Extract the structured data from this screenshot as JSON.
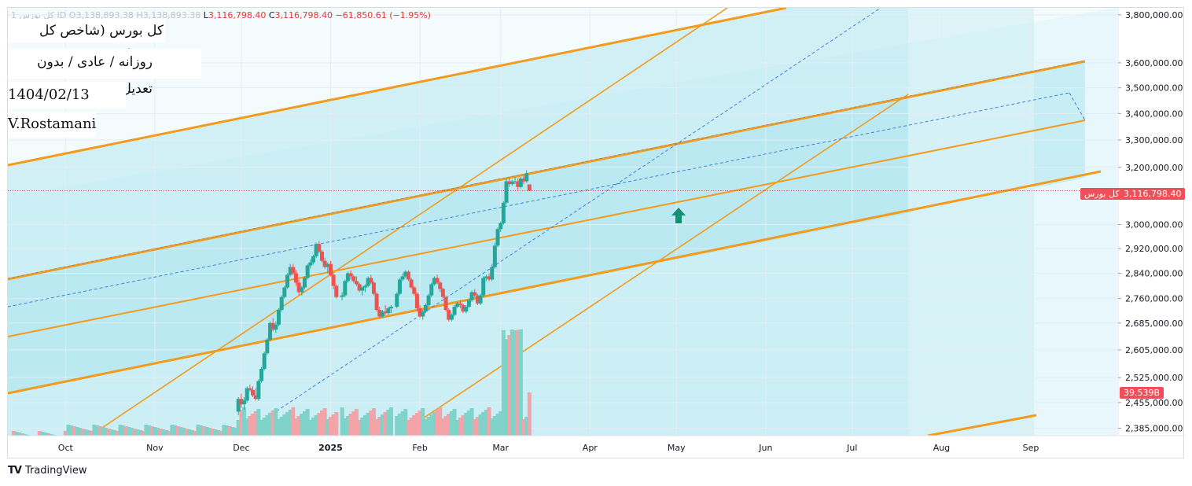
{
  "header": {
    "symbol_partial": "1 کل بورس ID",
    "o_label": "O",
    "o_value": "3,138,893.38",
    "h_label": "H",
    "h_value": "3,138,893.38",
    "l_label": "L",
    "l_value": "3,116,798.40",
    "c_label": "C",
    "c_value": "3,116,798.40",
    "change": "−61,850.61 (−1.95%)"
  },
  "title_lines": {
    "index_name": "کل بورس (شاخص کل بورس)",
    "settings": "روزانه / عادی / بدون تعدیل",
    "timestamp": "1404/02/13 17:36",
    "author": "V.Rostamani"
  },
  "price_tag": {
    "symbol": "کل بورس",
    "value": "3,116,798.40"
  },
  "volume_tag": {
    "value": "39.539B"
  },
  "brand": {
    "name": "TradingView",
    "logo_text": "TV"
  },
  "colors": {
    "up": "#26a69a",
    "down": "#ef5350",
    "trendline": "#f29b1d",
    "dashed": "#3f7fe0",
    "fill": "#cfeff5",
    "fill_dark": "#a9e6ee"
  },
  "chart_data": {
    "type": "candlestick",
    "title": "کل بورس (شاخص کل بورس)",
    "y_ticks": [
      "3,800,000.00",
      "3,600,000.00",
      "3,500,000.00",
      "3,400,000.00",
      "3,300,000.00",
      "3,200,000.00",
      "3,000,000.00",
      "2,920,000.00",
      "2,840,000.00",
      "2,760,000.00",
      "2,685,000.00",
      "2,605,000.00",
      "2,525,000.00",
      "2,455,000.00",
      "2,385,000.00"
    ],
    "y_tick_values": [
      3800000,
      3600000,
      3500000,
      3400000,
      3300000,
      3200000,
      3000000,
      2920000,
      2840000,
      2760000,
      2685000,
      2605000,
      2525000,
      2455000,
      2385000
    ],
    "y_scale": "log",
    "ylim": [
      2365000,
      3830000
    ],
    "x_ticks": [
      "Oct",
      "Nov",
      "Dec",
      "2025",
      "Feb",
      "Mar",
      "Apr",
      "May",
      "Jun",
      "Jul",
      "Aug",
      "Sep"
    ],
    "x_tick_days": [
      0,
      31,
      61,
      92,
      123,
      151,
      182,
      212,
      243,
      273,
      304,
      335
    ],
    "x_start": "2024-10-01",
    "xlim_days": [
      -20,
      365
    ],
    "last_price": 3116798.4,
    "volume_last": "39.539B",
    "candles": [
      [
        60,
        2430000,
        2470000,
        2420000,
        2465000
      ],
      [
        61,
        2465000,
        2480000,
        2440000,
        2450000
      ],
      [
        62,
        2450000,
        2470000,
        2435000,
        2460000
      ],
      [
        63,
        2460000,
        2500000,
        2455000,
        2495000
      ],
      [
        64,
        2495000,
        2505000,
        2485000,
        2490000
      ],
      [
        65,
        2490000,
        2500000,
        2470000,
        2475000
      ],
      [
        66,
        2475000,
        2495000,
        2460000,
        2465000
      ],
      [
        67,
        2465000,
        2520000,
        2460000,
        2515000
      ],
      [
        68,
        2515000,
        2555000,
        2510000,
        2550000
      ],
      [
        69,
        2550000,
        2600000,
        2545000,
        2595000
      ],
      [
        70,
        2595000,
        2640000,
        2590000,
        2635000
      ],
      [
        71,
        2635000,
        2690000,
        2630000,
        2685000
      ],
      [
        72,
        2685000,
        2700000,
        2660000,
        2665000
      ],
      [
        73,
        2665000,
        2690000,
        2655000,
        2680000
      ],
      [
        74,
        2680000,
        2730000,
        2675000,
        2725000
      ],
      [
        75,
        2725000,
        2770000,
        2720000,
        2765000
      ],
      [
        76,
        2765000,
        2800000,
        2760000,
        2795000
      ],
      [
        77,
        2795000,
        2840000,
        2790000,
        2835000
      ],
      [
        78,
        2835000,
        2870000,
        2830000,
        2860000
      ],
      [
        79,
        2860000,
        2870000,
        2835000,
        2840000
      ],
      [
        80,
        2840000,
        2850000,
        2800000,
        2810000
      ],
      [
        81,
        2810000,
        2820000,
        2770000,
        2780000
      ],
      [
        82,
        2780000,
        2800000,
        2770000,
        2795000
      ],
      [
        83,
        2795000,
        2830000,
        2790000,
        2825000
      ],
      [
        84,
        2825000,
        2870000,
        2820000,
        2865000
      ],
      [
        85,
        2865000,
        2885000,
        2855000,
        2875000
      ],
      [
        86,
        2875000,
        2900000,
        2868000,
        2895000
      ],
      [
        87,
        2895000,
        2940000,
        2890000,
        2935000
      ],
      [
        88,
        2935000,
        2945000,
        2905000,
        2910000
      ],
      [
        89,
        2910000,
        2915000,
        2875000,
        2880000
      ],
      [
        90,
        2880000,
        2890000,
        2855000,
        2860000
      ],
      [
        91,
        2860000,
        2875000,
        2840000,
        2870000
      ],
      [
        92,
        2870000,
        2880000,
        2830000,
        2835000
      ],
      [
        93,
        2835000,
        2840000,
        2790000,
        2800000
      ],
      [
        94,
        2800000,
        2805000,
        2760000,
        2765000
      ],
      [
        96,
        2765000,
        2780000,
        2755000,
        2770000
      ],
      [
        97,
        2770000,
        2820000,
        2765000,
        2815000
      ],
      [
        98,
        2815000,
        2845000,
        2810000,
        2840000
      ],
      [
        99,
        2840000,
        2850000,
        2820000,
        2830000
      ],
      [
        100,
        2830000,
        2835000,
        2810000,
        2815000
      ],
      [
        101,
        2815000,
        2830000,
        2800000,
        2805000
      ],
      [
        102,
        2805000,
        2810000,
        2780000,
        2785000
      ],
      [
        103,
        2785000,
        2800000,
        2770000,
        2795000
      ],
      [
        104,
        2795000,
        2805000,
        2780000,
        2800000
      ],
      [
        105,
        2800000,
        2830000,
        2795000,
        2825000
      ],
      [
        106,
        2825000,
        2835000,
        2805000,
        2810000
      ],
      [
        107,
        2810000,
        2815000,
        2770000,
        2775000
      ],
      [
        108,
        2775000,
        2780000,
        2720000,
        2725000
      ],
      [
        109,
        2725000,
        2735000,
        2700000,
        2705000
      ],
      [
        110,
        2705000,
        2725000,
        2700000,
        2720000
      ],
      [
        111,
        2720000,
        2740000,
        2710000,
        2715000
      ],
      [
        112,
        2715000,
        2735000,
        2710000,
        2730000
      ],
      [
        113,
        2730000,
        2740000,
        2715000,
        2735000
      ],
      [
        115,
        2735000,
        2780000,
        2730000,
        2775000
      ],
      [
        116,
        2775000,
        2825000,
        2770000,
        2820000
      ],
      [
        117,
        2820000,
        2840000,
        2815000,
        2830000
      ],
      [
        118,
        2830000,
        2850000,
        2825000,
        2845000
      ],
      [
        119,
        2845000,
        2850000,
        2815000,
        2820000
      ],
      [
        120,
        2820000,
        2825000,
        2790000,
        2795000
      ],
      [
        121,
        2795000,
        2800000,
        2770000,
        2775000
      ],
      [
        122,
        2775000,
        2780000,
        2720000,
        2730000
      ],
      [
        123,
        2730000,
        2740000,
        2700000,
        2705000
      ],
      [
        124,
        2705000,
        2725000,
        2695000,
        2720000
      ],
      [
        125,
        2720000,
        2745000,
        2715000,
        2740000
      ],
      [
        126,
        2740000,
        2775000,
        2735000,
        2770000
      ],
      [
        127,
        2770000,
        2810000,
        2765000,
        2805000
      ],
      [
        128,
        2805000,
        2830000,
        2800000,
        2825000
      ],
      [
        129,
        2825000,
        2835000,
        2805000,
        2810000
      ],
      [
        130,
        2810000,
        2815000,
        2780000,
        2790000
      ],
      [
        131,
        2790000,
        2795000,
        2760000,
        2765000
      ],
      [
        132,
        2765000,
        2770000,
        2720000,
        2725000
      ],
      [
        133,
        2725000,
        2730000,
        2690000,
        2695000
      ],
      [
        134,
        2695000,
        2715000,
        2690000,
        2710000
      ],
      [
        135,
        2710000,
        2740000,
        2705000,
        2735000
      ],
      [
        136,
        2735000,
        2750000,
        2730000,
        2745000
      ],
      [
        137,
        2745000,
        2755000,
        2730000,
        2740000
      ],
      [
        138,
        2740000,
        2745000,
        2715000,
        2720000
      ],
      [
        139,
        2720000,
        2740000,
        2715000,
        2735000
      ],
      [
        140,
        2735000,
        2760000,
        2730000,
        2755000
      ],
      [
        141,
        2755000,
        2785000,
        2750000,
        2780000
      ],
      [
        142,
        2780000,
        2790000,
        2765000,
        2770000
      ],
      [
        143,
        2770000,
        2775000,
        2740000,
        2745000
      ],
      [
        144,
        2745000,
        2775000,
        2740000,
        2770000
      ],
      [
        145,
        2770000,
        2830000,
        2765000,
        2825000
      ],
      [
        146,
        2825000,
        2835000,
        2815000,
        2830000
      ],
      [
        147,
        2830000,
        2840000,
        2815000,
        2820000
      ],
      [
        148,
        2820000,
        2870000,
        2815000,
        2860000
      ],
      [
        149,
        2860000,
        2940000,
        2855000,
        2930000
      ],
      [
        150,
        2930000,
        2990000,
        2925000,
        2985000
      ],
      [
        151,
        2985000,
        3010000,
        2975000,
        3005000
      ],
      [
        152,
        3005000,
        3080000,
        3000000,
        3075000
      ],
      [
        153,
        3075000,
        3160000,
        3070000,
        3150000
      ],
      [
        154,
        3150000,
        3160000,
        3130000,
        3140000
      ],
      [
        155,
        3140000,
        3155000,
        3135000,
        3150000
      ],
      [
        156,
        3150000,
        3165000,
        3140000,
        3150000
      ],
      [
        157,
        3150000,
        3160000,
        3120000,
        3130000
      ],
      [
        158,
        3130000,
        3165000,
        3125000,
        3160000
      ],
      [
        159,
        3160000,
        3170000,
        3140000,
        3150000
      ],
      [
        160,
        3150000,
        3190000,
        3145000,
        3178649
      ],
      [
        161,
        3138893,
        3138893,
        3116798,
        3116798
      ]
    ],
    "volumes": "relative 0–1 per bar, peak in mid-April"
  },
  "arrow_label": "up-arrow-marker"
}
